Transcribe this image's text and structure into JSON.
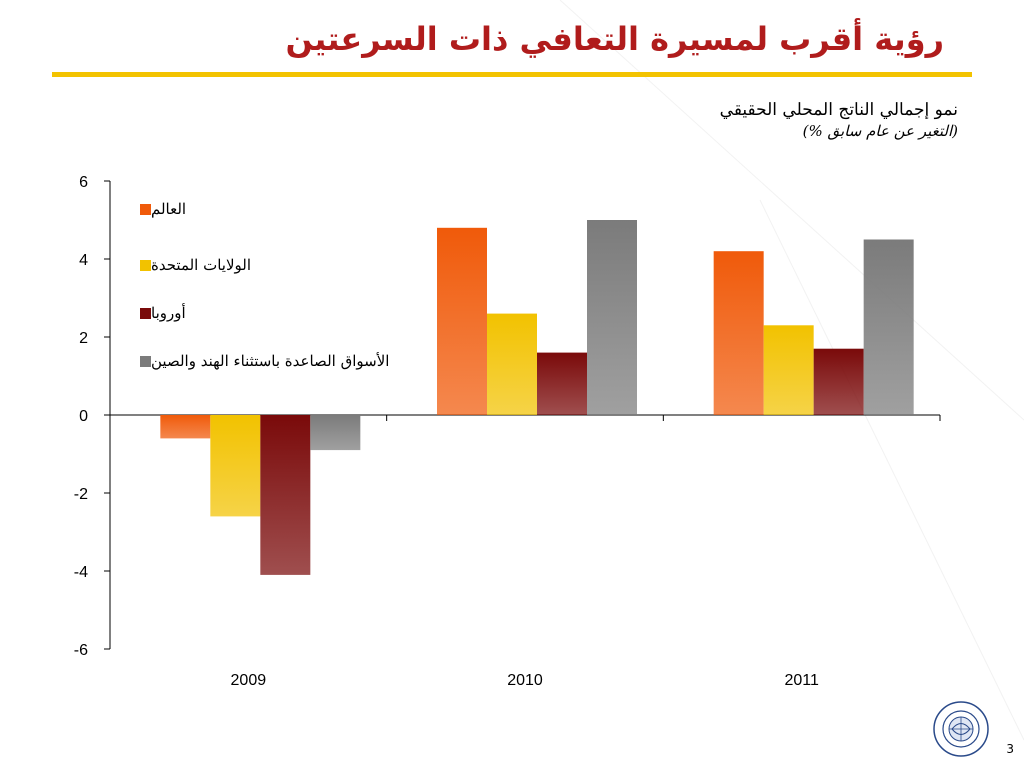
{
  "slide": {
    "title": "رؤية أقرب لمسيرة التعافي ذات السرعتين",
    "page_number": "3"
  },
  "chart_data": {
    "type": "bar",
    "title": "نمو إجمالي الناتج المحلي الحقيقي",
    "subtitle": "(التغير عن عام سابق %)",
    "categories": [
      "2009",
      "2010",
      "2011"
    ],
    "series": [
      {
        "name": "العالم",
        "values": [
          -0.6,
          4.8,
          4.2
        ],
        "color": "#f05a0a"
      },
      {
        "name": "الولايات المتحدة",
        "values": [
          -2.6,
          2.6,
          2.3
        ],
        "color": "#f2c200"
      },
      {
        "name": "أوروبا",
        "values": [
          -4.1,
          1.6,
          1.7
        ],
        "color": "#7a0a0a"
      },
      {
        "name": "الأسواق الصاعدة باستثناء الهند والصين",
        "values": [
          -0.9,
          5.0,
          4.5
        ],
        "color": "#7b7b7b"
      }
    ],
    "ylim": [
      -6,
      6
    ],
    "yticks": [
      "6",
      "4",
      "2",
      "0",
      "-2",
      "-4",
      "-6"
    ],
    "grid": false,
    "legend_position": "top-left"
  }
}
